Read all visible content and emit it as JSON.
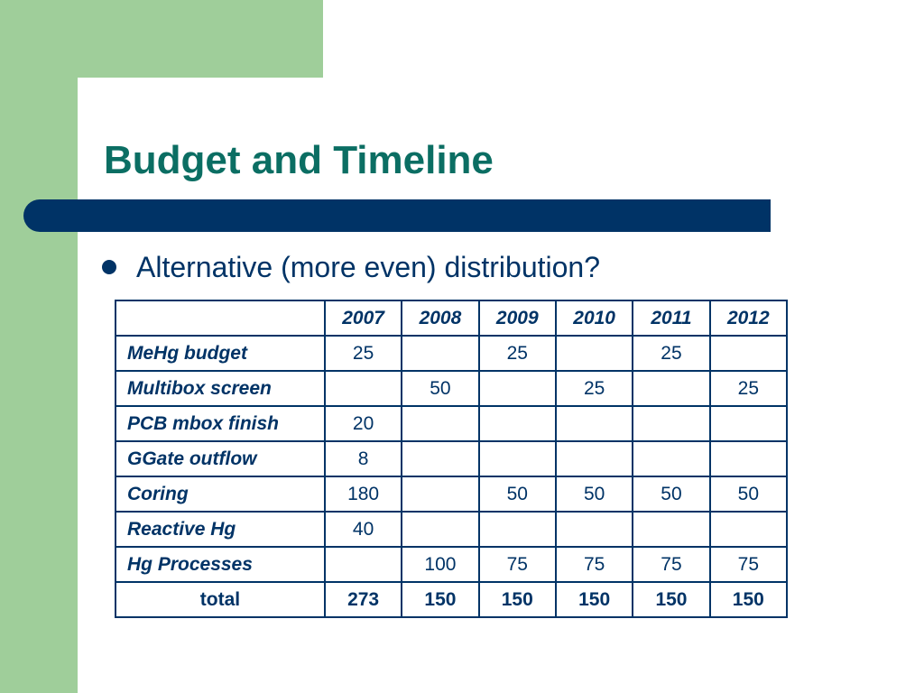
{
  "slide": {
    "title": "Budget and Timeline",
    "bullet": "Alternative (more even) distribution?",
    "colors": {
      "accent_green": "#9fce9a",
      "title_teal": "#0b6e63",
      "navy": "#003366"
    }
  },
  "table": {
    "corner": "",
    "years": [
      "2007",
      "2008",
      "2009",
      "2010",
      "2011",
      "2012"
    ],
    "rows": [
      {
        "label": "MeHg budget",
        "values": [
          "25",
          "",
          "25",
          "",
          "25",
          ""
        ]
      },
      {
        "label": "Multibox screen",
        "values": [
          "",
          "50",
          "",
          "25",
          "",
          "25"
        ]
      },
      {
        "label": "PCB mbox finish",
        "values": [
          "20",
          "",
          "",
          "",
          "",
          ""
        ]
      },
      {
        "label": "GGate outflow",
        "values": [
          "8",
          "",
          "",
          "",
          "",
          ""
        ]
      },
      {
        "label": "Coring",
        "values": [
          "180",
          "",
          "50",
          "50",
          "50",
          "50"
        ]
      },
      {
        "label": "Reactive Hg",
        "values": [
          "40",
          "",
          "",
          "",
          "",
          ""
        ]
      },
      {
        "label": "Hg Processes",
        "values": [
          "",
          "100",
          "75",
          "75",
          "75",
          "75"
        ]
      }
    ],
    "total": {
      "label": "total",
      "values": [
        "273",
        "150",
        "150",
        "150",
        "150",
        "150"
      ]
    }
  }
}
